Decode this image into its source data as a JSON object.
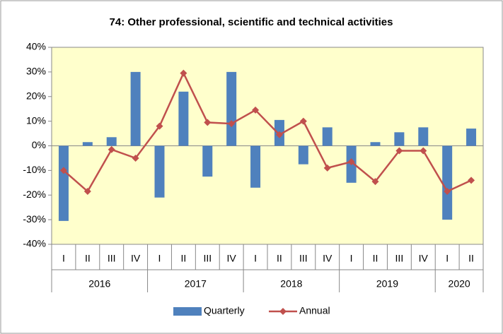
{
  "chart_data": {
    "type": "bar",
    "title": "74: Other professional, scientific and technical activities",
    "groups": [
      {
        "name": "2016",
        "categories": [
          "I",
          "II",
          "III",
          "IV"
        ]
      },
      {
        "name": "2017",
        "categories": [
          "I",
          "II",
          "III",
          "IV"
        ]
      },
      {
        "name": "2018",
        "categories": [
          "I",
          "II",
          "III",
          "IV"
        ]
      },
      {
        "name": "2019",
        "categories": [
          "I",
          "II",
          "III",
          "IV"
        ]
      },
      {
        "name": "2020",
        "categories": [
          "I",
          "II"
        ]
      }
    ],
    "series": [
      {
        "name": "Quarterly",
        "type": "bar",
        "color": "#4f81bd",
        "values": [
          -30.5,
          1.5,
          3.5,
          30,
          -21,
          22,
          -12.5,
          30,
          -17,
          10.5,
          -7.5,
          7.5,
          -15,
          1.5,
          5.5,
          7.5,
          -30,
          7
        ]
      },
      {
        "name": "Annual",
        "type": "line",
        "color": "#c0504d",
        "values": [
          -10,
          -18.5,
          -1.5,
          -5,
          8,
          29.5,
          9.5,
          9,
          14.5,
          4.5,
          10,
          -9,
          -6.5,
          -14.5,
          -2,
          -2,
          -18.5,
          -14
        ]
      }
    ],
    "ylim": [
      -40,
      40
    ],
    "yticks": [
      {
        "value": -40,
        "label": "-40%"
      },
      {
        "value": -30,
        "label": "-30%"
      },
      {
        "value": -20,
        "label": "-20%"
      },
      {
        "value": -10,
        "label": "-10%"
      },
      {
        "value": 0,
        "label": "0%"
      },
      {
        "value": 10,
        "label": "10%"
      },
      {
        "value": 20,
        "label": "20%"
      },
      {
        "value": 30,
        "label": "30%"
      },
      {
        "value": 40,
        "label": "40%"
      }
    ],
    "legend": "bottom",
    "plot_background": "#ffffcc"
  }
}
